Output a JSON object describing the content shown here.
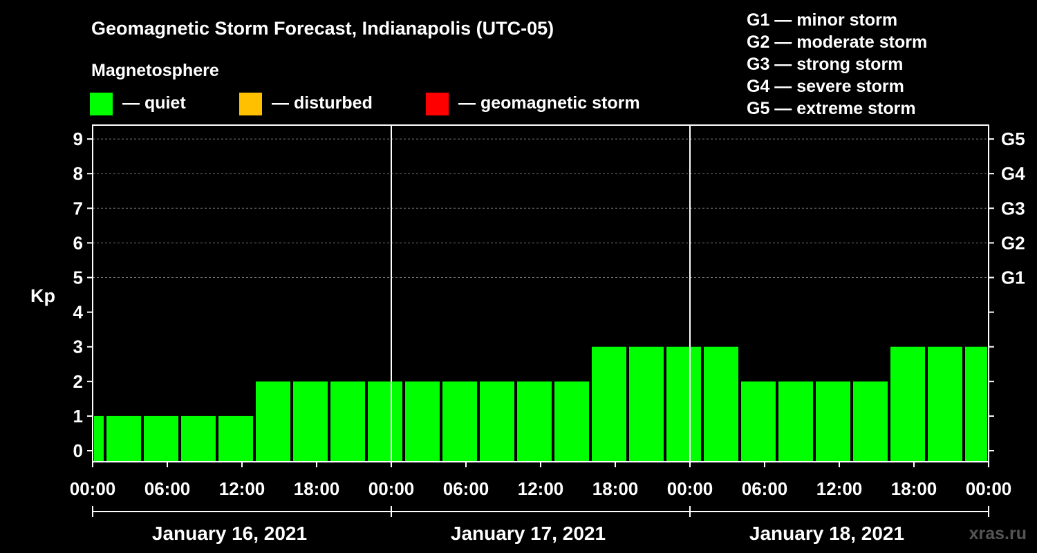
{
  "chart_data": {
    "type": "bar",
    "title": "Geomagnetic Storm Forecast, Indianapolis (UTC-05)",
    "legend_title": "Magnetosphere",
    "legend": [
      {
        "label": "— quiet",
        "color": "#00ff00"
      },
      {
        "label": "— disturbed",
        "color": "#ffc000"
      },
      {
        "label": "— geomagnetic storm",
        "color": "#ff0000"
      }
    ],
    "storm_scale": [
      "G1 — minor storm",
      "G2 — moderate storm",
      "G3 — strong storm",
      "G4 — severe storm",
      "G5 — extreme storm"
    ],
    "ylabel": "Kp",
    "ylim": [
      0,
      9
    ],
    "yticks": [
      0,
      1,
      2,
      3,
      4,
      5,
      6,
      7,
      8,
      9
    ],
    "right_ticks": [
      {
        "kp": 5,
        "label": "G1"
      },
      {
        "kp": 6,
        "label": "G2"
      },
      {
        "kp": 7,
        "label": "G3"
      },
      {
        "kp": 8,
        "label": "G4"
      },
      {
        "kp": 9,
        "label": "G5"
      }
    ],
    "x_range_hours": [
      0,
      72
    ],
    "xticks": [
      {
        "hour": 0,
        "label": "00:00"
      },
      {
        "hour": 6,
        "label": "06:00"
      },
      {
        "hour": 12,
        "label": "12:00"
      },
      {
        "hour": 18,
        "label": "18:00"
      },
      {
        "hour": 24,
        "label": "00:00"
      },
      {
        "hour": 30,
        "label": "06:00"
      },
      {
        "hour": 36,
        "label": "12:00"
      },
      {
        "hour": 42,
        "label": "18:00"
      },
      {
        "hour": 48,
        "label": "00:00"
      },
      {
        "hour": 54,
        "label": "06:00"
      },
      {
        "hour": 60,
        "label": "12:00"
      },
      {
        "hour": 66,
        "label": "18:00"
      },
      {
        "hour": 72,
        "label": "00:00"
      }
    ],
    "days": [
      {
        "label": "January 16, 2021",
        "start_hour": 0,
        "end_hour": 24
      },
      {
        "label": "January 17, 2021",
        "start_hour": 24,
        "end_hour": 48
      },
      {
        "label": "January 18, 2021",
        "start_hour": 48,
        "end_hour": 72
      }
    ],
    "bars": [
      {
        "start_hour": 0,
        "end_hour": 1,
        "kp": 1
      },
      {
        "start_hour": 1,
        "end_hour": 4,
        "kp": 1
      },
      {
        "start_hour": 4,
        "end_hour": 7,
        "kp": 1
      },
      {
        "start_hour": 7,
        "end_hour": 10,
        "kp": 1
      },
      {
        "start_hour": 10,
        "end_hour": 13,
        "kp": 1
      },
      {
        "start_hour": 13,
        "end_hour": 16,
        "kp": 2
      },
      {
        "start_hour": 16,
        "end_hour": 19,
        "kp": 2
      },
      {
        "start_hour": 19,
        "end_hour": 22,
        "kp": 2
      },
      {
        "start_hour": 22,
        "end_hour": 25,
        "kp": 2
      },
      {
        "start_hour": 25,
        "end_hour": 28,
        "kp": 2
      },
      {
        "start_hour": 28,
        "end_hour": 31,
        "kp": 2
      },
      {
        "start_hour": 31,
        "end_hour": 34,
        "kp": 2
      },
      {
        "start_hour": 34,
        "end_hour": 37,
        "kp": 2
      },
      {
        "start_hour": 37,
        "end_hour": 40,
        "kp": 2
      },
      {
        "start_hour": 40,
        "end_hour": 43,
        "kp": 3
      },
      {
        "start_hour": 43,
        "end_hour": 46,
        "kp": 3
      },
      {
        "start_hour": 46,
        "end_hour": 49,
        "kp": 3
      },
      {
        "start_hour": 49,
        "end_hour": 52,
        "kp": 3
      },
      {
        "start_hour": 52,
        "end_hour": 55,
        "kp": 2
      },
      {
        "start_hour": 55,
        "end_hour": 58,
        "kp": 2
      },
      {
        "start_hour": 58,
        "end_hour": 61,
        "kp": 2
      },
      {
        "start_hour": 61,
        "end_hour": 64,
        "kp": 2
      },
      {
        "start_hour": 64,
        "end_hour": 67,
        "kp": 3
      },
      {
        "start_hour": 67,
        "end_hour": 70,
        "kp": 3
      },
      {
        "start_hour": 70,
        "end_hour": 72,
        "kp": 3
      }
    ],
    "watermark": "xras.ru"
  }
}
